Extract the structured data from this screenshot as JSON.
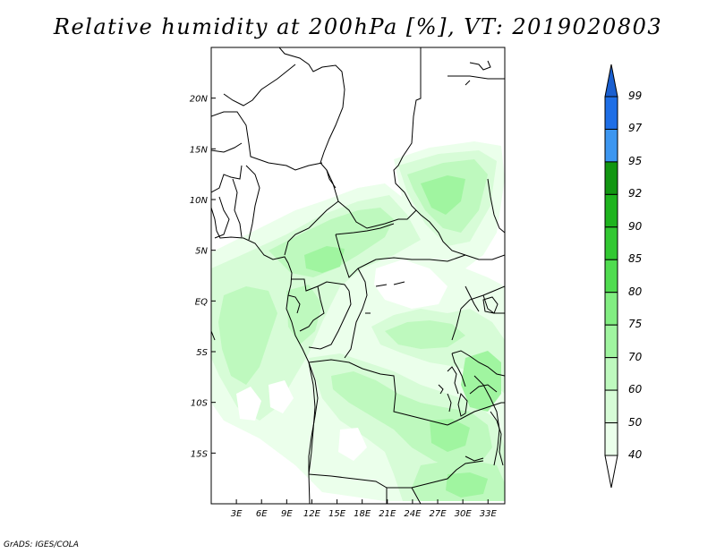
{
  "title": "Relative humidity at 200hPa [%], VT: 2019020803",
  "credit": "GrADS: IGES/COLA",
  "map": {
    "lon_range": [
      0,
      35
    ],
    "lat_range": [
      -20,
      25
    ],
    "lon_ticks": [
      {
        "lon": 3,
        "label": "3E"
      },
      {
        "lon": 6,
        "label": "6E"
      },
      {
        "lon": 9,
        "label": "9E"
      },
      {
        "lon": 12,
        "label": "12E"
      },
      {
        "lon": 15,
        "label": "15E"
      },
      {
        "lon": 18,
        "label": "18E"
      },
      {
        "lon": 21,
        "label": "21E"
      },
      {
        "lon": 24,
        "label": "24E"
      },
      {
        "lon": 27,
        "label": "27E"
      },
      {
        "lon": 30,
        "label": "30E"
      },
      {
        "lon": 33,
        "label": "33E"
      }
    ],
    "lat_ticks": [
      {
        "lat": 20,
        "label": "20N"
      },
      {
        "lat": 15,
        "label": "15N"
      },
      {
        "lat": 10,
        "label": "10N"
      },
      {
        "lat": 5,
        "label": "5N"
      },
      {
        "lat": 0,
        "label": "EQ"
      },
      {
        "lat": -5,
        "label": "5S"
      },
      {
        "lat": -10,
        "label": "10S"
      },
      {
        "lat": -15,
        "label": "15S"
      }
    ]
  },
  "colorbar": {
    "levels": [
      "99",
      "97",
      "95",
      "92",
      "90",
      "85",
      "80",
      "75",
      "70",
      "60",
      "50",
      "40"
    ],
    "colors": [
      "#1e6ee6",
      "#3c96f0",
      "#129612",
      "#1eb41e",
      "#32c832",
      "#50dc50",
      "#82ee82",
      "#a0f5a0",
      "#bef9be",
      "#d7fcd7",
      "#ebffeb"
    ],
    "top_arrow_color": "#1a5fd0",
    "bottom_arrow_color": "#ffffff"
  },
  "humidity_fields": {
    "fill_colors": {
      "40-50": "#ebffeb",
      "50-60": "#d7fcd7",
      "60-70": "#bef9be",
      "70-75": "#a0f5a0"
    }
  }
}
